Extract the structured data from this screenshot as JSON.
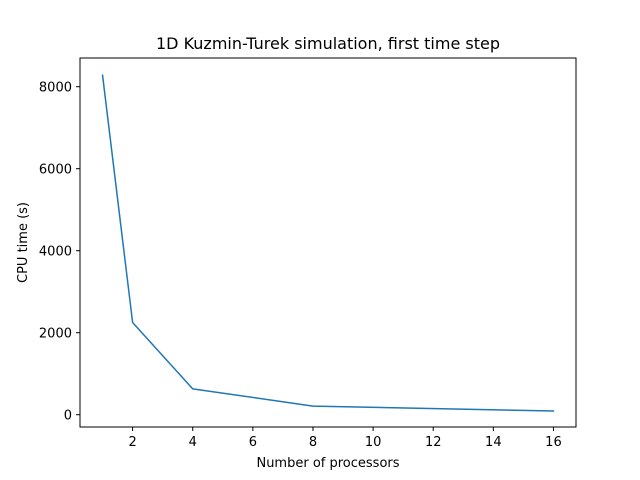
{
  "chart_data": {
    "type": "line",
    "title": "1D Kuzmin-Turek simulation, first time step",
    "xlabel": "Number of processors",
    "ylabel": "CPU time (s)",
    "xlim": [
      0.25,
      16.75
    ],
    "ylim": [
      -300,
      8700
    ],
    "xticks": [
      2,
      4,
      6,
      8,
      10,
      12,
      14,
      16
    ],
    "yticks": [
      0,
      2000,
      4000,
      6000,
      8000
    ],
    "grid": false,
    "series": [
      {
        "color": "#1f77b4",
        "x": [
          1,
          2,
          4,
          8,
          16
        ],
        "y": [
          8280,
          2250,
          630,
          210,
          90
        ]
      }
    ]
  }
}
